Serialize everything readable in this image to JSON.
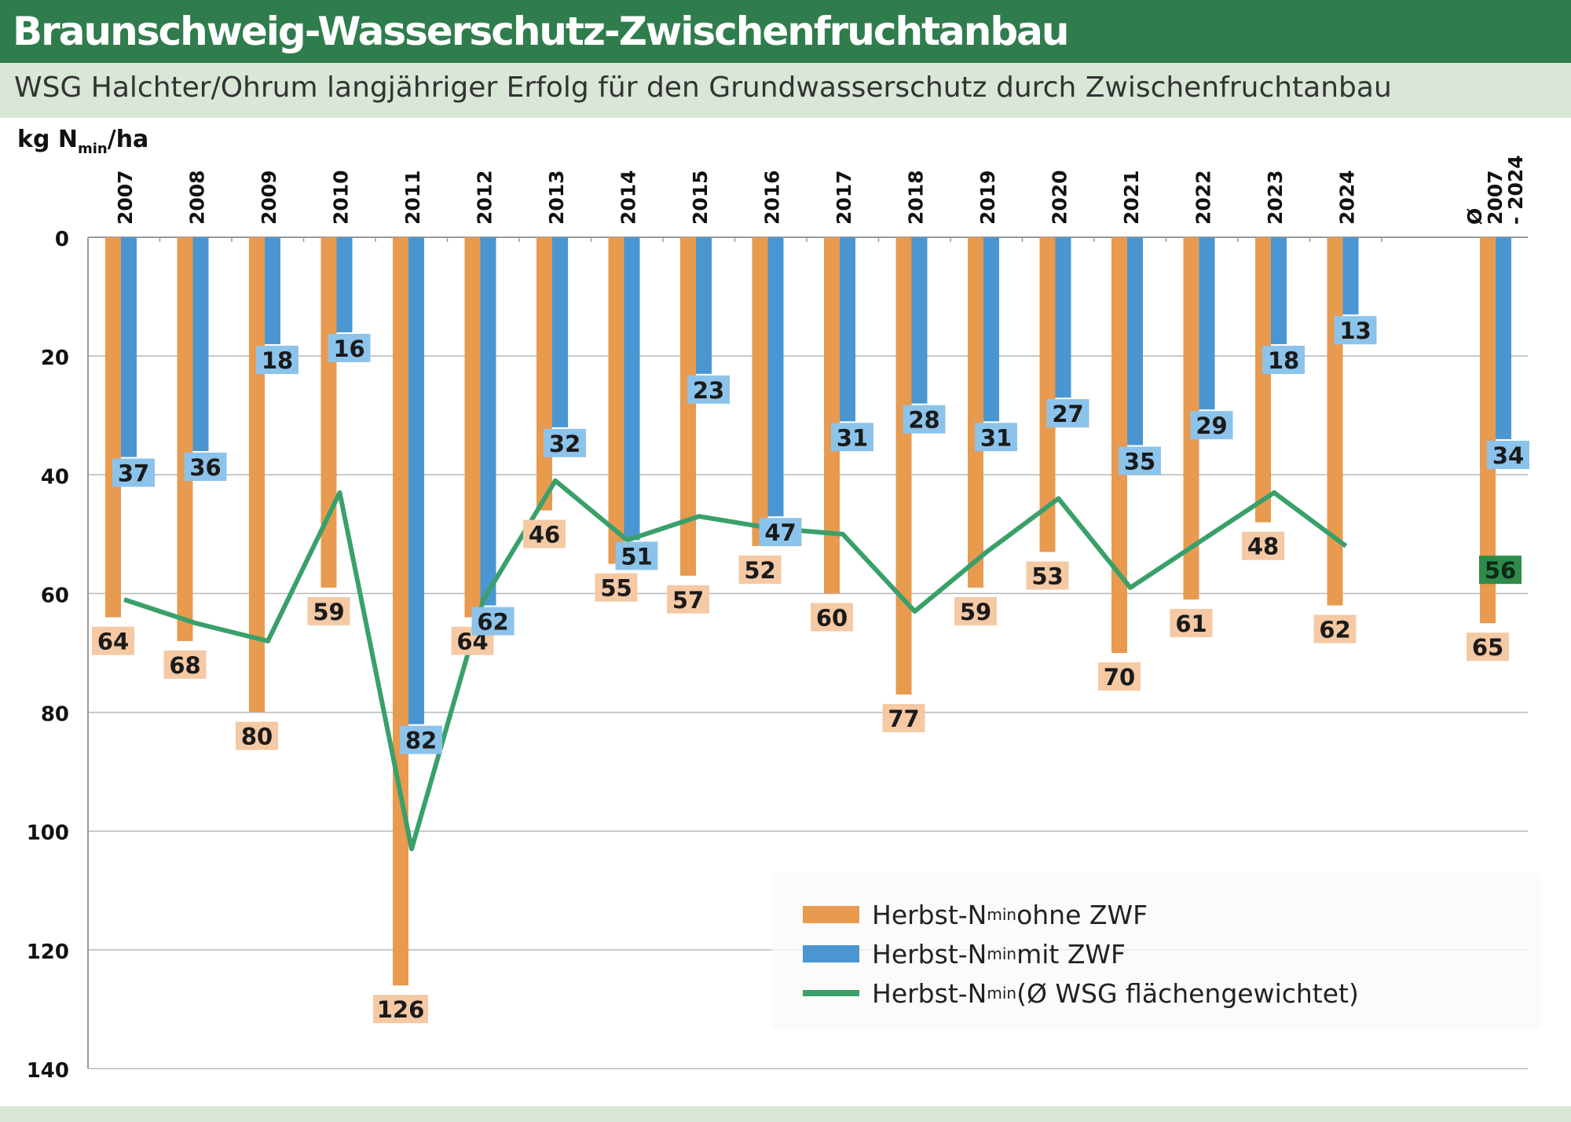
{
  "header": {
    "title": "Braunschweig-Wasserschutz-Zwischenfruchtanbau",
    "subtitle": "WSG Halchter/Ohrum langjähriger Erfolg für den Grundwasserschutz durch Zwischenfruchtanbau"
  },
  "unit_label": {
    "main": "kg N",
    "sub": "min",
    "rest": "/ha"
  },
  "legend": [
    {
      "prefix": "Herbst-N",
      "sub": "min",
      "suffix": " ohne ZWF",
      "color": "#e89a4f"
    },
    {
      "prefix": "Herbst-N",
      "sub": "min",
      "suffix": " mit ZWF",
      "color": "#4a96d2"
    },
    {
      "prefix": "Herbst-N",
      "sub": "min",
      "suffix": " (Ø WSG flächengewichtet)",
      "color": "#3aa06a"
    }
  ],
  "chart_data": {
    "type": "bar",
    "categories": [
      "2007",
      "2008",
      "2009",
      "2010",
      "2011",
      "2012",
      "2013",
      "2014",
      "2015",
      "2016",
      "2017",
      "2018",
      "2019",
      "2020",
      "2021",
      "2022",
      "2023",
      "2024",
      "Ø 2007 - 2024"
    ],
    "y_axis": {
      "min": 0,
      "max": 140,
      "ticks": [
        0,
        20,
        40,
        60,
        80,
        100,
        120,
        140
      ],
      "inverted": true
    },
    "grid": true,
    "series": [
      {
        "name": "Herbst-Nmin ohne ZWF",
        "kind": "bar",
        "color": "#e89a4f",
        "label_bg": "#f4c9a4",
        "values": [
          64,
          68,
          80,
          59,
          126,
          64,
          46,
          55,
          57,
          52,
          60,
          77,
          59,
          53,
          70,
          61,
          48,
          62,
          65
        ]
      },
      {
        "name": "Herbst-Nmin mit ZWF",
        "kind": "bar",
        "color": "#4a96d2",
        "label_bg": "#8cc3ea",
        "values": [
          37,
          36,
          18,
          16,
          82,
          62,
          32,
          51,
          23,
          47,
          31,
          28,
          31,
          27,
          35,
          29,
          18,
          13,
          34
        ]
      },
      {
        "name": "Herbst-Nmin (Ø WSG flächengewichtet)",
        "kind": "line",
        "color": "#3aa06a",
        "values": [
          61,
          65,
          68,
          43,
          103,
          61,
          41,
          51,
          47,
          49,
          50,
          63,
          53,
          44,
          59,
          51,
          43,
          52,
          56
        ],
        "label_index": 18,
        "label_bg": "#2e8b4a"
      }
    ],
    "legend_position": "bottom-right"
  }
}
